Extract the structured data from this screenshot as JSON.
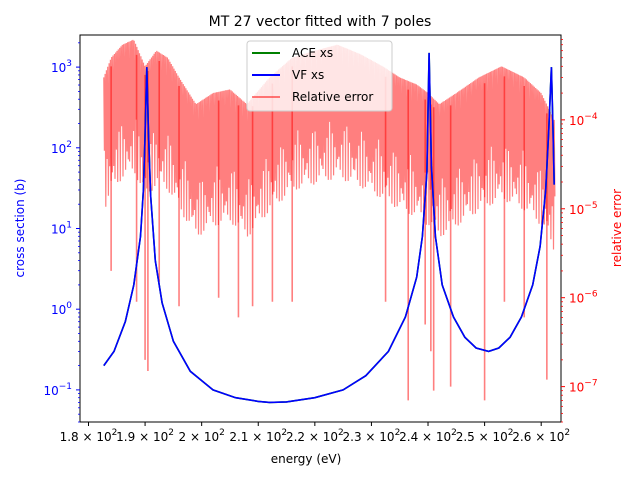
{
  "chart_data": {
    "type": "line",
    "title": "MT 27 vector fitted with 7 poles",
    "xlabel": "energy (eV)",
    "ylabel_left": "cross section (b)",
    "ylabel_right": "relative error",
    "xlim": [
      178.5,
      263.5
    ],
    "ylim_left": [
      0.04,
      2500
    ],
    "ylim_right": [
      4e-08,
      0.0009
    ],
    "yscale_left": "log",
    "yscale_right": "log",
    "x_ticks": [
      {
        "value": 180,
        "label": "1.8 × 10²"
      },
      {
        "value": 190,
        "label": "1.9 × 10²"
      },
      {
        "value": 200,
        "label": "2 × 10²"
      },
      {
        "value": 210,
        "label": "2.1 × 10²"
      },
      {
        "value": 220,
        "label": "2.2 × 10²"
      },
      {
        "value": 230,
        "label": "2.3 × 10²"
      },
      {
        "value": 240,
        "label": "2.4 × 10²"
      },
      {
        "value": 250,
        "label": "2.5 × 10²"
      },
      {
        "value": 260,
        "label": "2.6 × 10²"
      }
    ],
    "y_ticks_left": [
      {
        "value": 0.1,
        "label": "10⁻¹"
      },
      {
        "value": 1,
        "label": "10⁰"
      },
      {
        "value": 10,
        "label": "10¹"
      },
      {
        "value": 100,
        "label": "10²"
      },
      {
        "value": 1000,
        "label": "10³"
      }
    ],
    "y_ticks_right": [
      {
        "value": 1e-07,
        "label": "10⁻⁷"
      },
      {
        "value": 1e-06,
        "label": "10⁻⁶"
      },
      {
        "value": 1e-05,
        "label": "10⁻⁵"
      },
      {
        "value": 0.0001,
        "label": "10⁻⁴"
      }
    ],
    "legend_position": "top-center",
    "grid": false,
    "series": [
      {
        "name": "ACE xs",
        "color": "#008000",
        "axis": "left",
        "points": [
          [
            182.7,
            0.2
          ],
          [
            184.5,
            0.3
          ],
          [
            186.5,
            0.7
          ],
          [
            188.0,
            2.0
          ],
          [
            189.2,
            8.0
          ],
          [
            189.7,
            30
          ],
          [
            190.0,
            150
          ],
          [
            190.3,
            1000
          ],
          [
            190.6,
            150
          ],
          [
            191.0,
            25
          ],
          [
            191.8,
            4.0
          ],
          [
            193.0,
            1.2
          ],
          [
            195.0,
            0.4
          ],
          [
            198.0,
            0.17
          ],
          [
            202.0,
            0.1
          ],
          [
            206.0,
            0.08
          ],
          [
            210.0,
            0.072
          ],
          [
            212.0,
            0.07
          ],
          [
            215.0,
            0.071
          ],
          [
            220.0,
            0.08
          ],
          [
            225.0,
            0.1
          ],
          [
            229.0,
            0.15
          ],
          [
            233.0,
            0.3
          ],
          [
            236.0,
            0.8
          ],
          [
            238.0,
            2.5
          ],
          [
            239.0,
            8
          ],
          [
            239.8,
            50
          ],
          [
            240.2,
            1500
          ],
          [
            240.6,
            60
          ],
          [
            241.3,
            8
          ],
          [
            242.5,
            2.0
          ],
          [
            244.5,
            0.8
          ],
          [
            246.5,
            0.45
          ],
          [
            248.5,
            0.33
          ],
          [
            250.7,
            0.3
          ],
          [
            252.5,
            0.33
          ],
          [
            254.5,
            0.45
          ],
          [
            256.5,
            0.8
          ],
          [
            258.5,
            2.0
          ],
          [
            259.8,
            6
          ],
          [
            260.8,
            30
          ],
          [
            261.3,
            150
          ],
          [
            261.8,
            1000
          ],
          [
            262.1,
            150
          ],
          [
            262.3,
            35
          ]
        ]
      },
      {
        "name": "VF xs",
        "color": "#0000ff",
        "axis": "left",
        "points": [
          [
            182.7,
            0.2
          ],
          [
            184.5,
            0.3
          ],
          [
            186.5,
            0.7
          ],
          [
            188.0,
            2.0
          ],
          [
            189.2,
            8.0
          ],
          [
            189.7,
            30
          ],
          [
            190.0,
            150
          ],
          [
            190.3,
            1000
          ],
          [
            190.6,
            150
          ],
          [
            191.0,
            25
          ],
          [
            191.8,
            4.0
          ],
          [
            193.0,
            1.2
          ],
          [
            195.0,
            0.4
          ],
          [
            198.0,
            0.17
          ],
          [
            202.0,
            0.1
          ],
          [
            206.0,
            0.08
          ],
          [
            210.0,
            0.072
          ],
          [
            212.0,
            0.07
          ],
          [
            215.0,
            0.071
          ],
          [
            220.0,
            0.08
          ],
          [
            225.0,
            0.1
          ],
          [
            229.0,
            0.15
          ],
          [
            233.0,
            0.3
          ],
          [
            236.0,
            0.8
          ],
          [
            238.0,
            2.5
          ],
          [
            239.0,
            8
          ],
          [
            239.8,
            50
          ],
          [
            240.2,
            1500
          ],
          [
            240.6,
            60
          ],
          [
            241.3,
            8
          ],
          [
            242.5,
            2.0
          ],
          [
            244.5,
            0.8
          ],
          [
            246.5,
            0.45
          ],
          [
            248.5,
            0.33
          ],
          [
            250.7,
            0.3
          ],
          [
            252.5,
            0.33
          ],
          [
            254.5,
            0.45
          ],
          [
            256.5,
            0.8
          ],
          [
            258.5,
            2.0
          ],
          [
            259.8,
            6
          ],
          [
            260.8,
            30
          ],
          [
            261.3,
            150
          ],
          [
            261.8,
            1000
          ],
          [
            262.1,
            150
          ],
          [
            262.3,
            35
          ]
        ]
      },
      {
        "name": "Relative error",
        "color": "#ff0000",
        "alpha": 0.5,
        "axis": "right",
        "envelope": [
          [
            182.7,
            0.0003
          ],
          [
            184.0,
            0.0005
          ],
          [
            186.0,
            0.0007
          ],
          [
            188.0,
            0.0008
          ],
          [
            190.0,
            0.0004
          ],
          [
            192.0,
            0.0006
          ],
          [
            194.0,
            0.0005
          ],
          [
            196.0,
            0.0003
          ],
          [
            199.0,
            0.00015
          ],
          [
            202.0,
            0.0002
          ],
          [
            205.0,
            0.00022
          ],
          [
            208.0,
            0.00015
          ],
          [
            212.0,
            0.0003
          ],
          [
            216.0,
            0.0005
          ],
          [
            220.0,
            0.0006
          ],
          [
            224.0,
            0.0007
          ],
          [
            228.0,
            0.00055
          ],
          [
            232.0,
            0.0004
          ],
          [
            235.0,
            0.0003
          ],
          [
            238.0,
            0.00025
          ],
          [
            240.0,
            0.0002
          ],
          [
            242.0,
            0.00015
          ],
          [
            245.0,
            0.0002
          ],
          [
            249.0,
            0.0003
          ],
          [
            253.0,
            0.0004
          ],
          [
            257.0,
            0.0003
          ],
          [
            260.0,
            0.0002
          ],
          [
            262.3,
            0.0001
          ]
        ],
        "dips": [
          [
            184.0,
            2e-06
          ],
          [
            188.5,
            9e-07
          ],
          [
            190.0,
            2e-07
          ],
          [
            190.5,
            1.5e-07
          ],
          [
            192.5,
            1.5e-06
          ],
          [
            196.0,
            8e-07
          ],
          [
            203.0,
            1e-06
          ],
          [
            206.5,
            6e-07
          ],
          [
            209.0,
            8e-07
          ],
          [
            212.5,
            9e-07
          ],
          [
            216.0,
            9e-07
          ],
          [
            232.5,
            9e-07
          ],
          [
            236.5,
            7e-08
          ],
          [
            239.5,
            5e-07
          ],
          [
            240.5,
            2.5e-07
          ],
          [
            241.0,
            9e-08
          ],
          [
            244.0,
            1e-07
          ],
          [
            250.0,
            7e-08
          ],
          [
            253.5,
            9e-07
          ],
          [
            257.0,
            6e-07
          ],
          [
            261.0,
            1.2e-07
          ]
        ]
      }
    ]
  }
}
